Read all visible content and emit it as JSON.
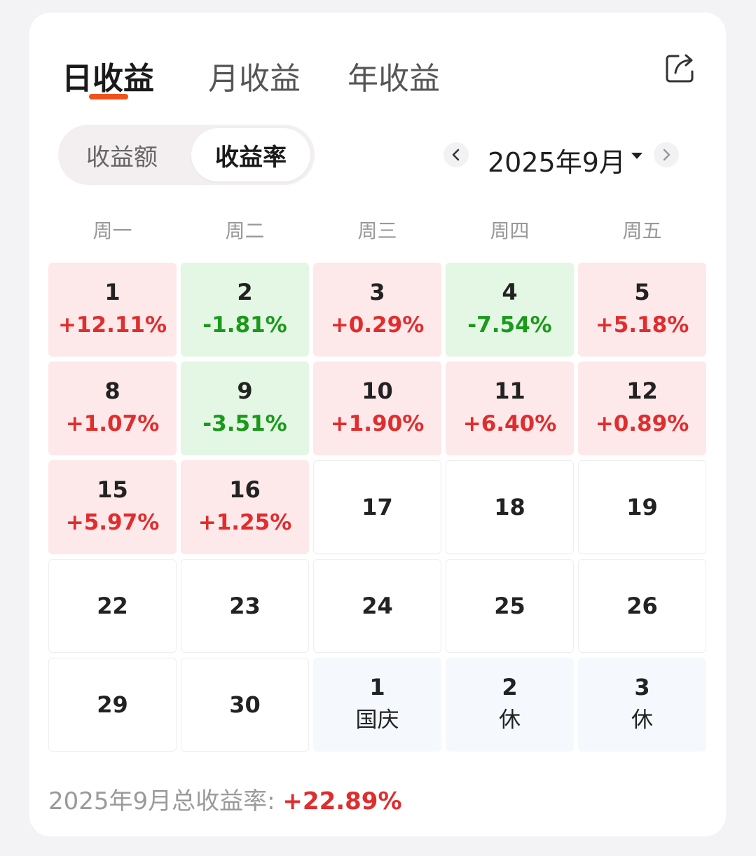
{
  "tabs": [
    {
      "label": "日收益",
      "active": true
    },
    {
      "label": "月收益",
      "active": false
    },
    {
      "label": "年收益",
      "active": false
    }
  ],
  "segment": {
    "options": [
      "收益额",
      "收益率"
    ],
    "selected": "收益率"
  },
  "month_picker": {
    "label": "2025年9月"
  },
  "weekdays": [
    "周一",
    "周二",
    "周三",
    "周四",
    "周五"
  ],
  "calendar": [
    [
      {
        "day": "1",
        "value": "+12.11%",
        "kind": "red"
      },
      {
        "day": "2",
        "value": "-1.81%",
        "kind": "green"
      },
      {
        "day": "3",
        "value": "+0.29%",
        "kind": "red"
      },
      {
        "day": "4",
        "value": "-7.54%",
        "kind": "green"
      },
      {
        "day": "5",
        "value": "+5.18%",
        "kind": "red"
      }
    ],
    [
      {
        "day": "8",
        "value": "+1.07%",
        "kind": "red"
      },
      {
        "day": "9",
        "value": "-3.51%",
        "kind": "green"
      },
      {
        "day": "10",
        "value": "+1.90%",
        "kind": "red"
      },
      {
        "day": "11",
        "value": "+6.40%",
        "kind": "red"
      },
      {
        "day": "12",
        "value": "+0.89%",
        "kind": "red"
      }
    ],
    [
      {
        "day": "15",
        "value": "+5.97%",
        "kind": "red"
      },
      {
        "day": "16",
        "value": "+1.25%",
        "kind": "red"
      },
      {
        "day": "17",
        "value": "",
        "kind": "empty"
      },
      {
        "day": "18",
        "value": "",
        "kind": "empty"
      },
      {
        "day": "19",
        "value": "",
        "kind": "empty"
      }
    ],
    [
      {
        "day": "22",
        "value": "",
        "kind": "empty"
      },
      {
        "day": "23",
        "value": "",
        "kind": "empty"
      },
      {
        "day": "24",
        "value": "",
        "kind": "empty"
      },
      {
        "day": "25",
        "value": "",
        "kind": "empty"
      },
      {
        "day": "26",
        "value": "",
        "kind": "empty"
      }
    ],
    [
      {
        "day": "29",
        "value": "",
        "kind": "empty"
      },
      {
        "day": "30",
        "value": "",
        "kind": "empty"
      },
      {
        "day": "1",
        "value": "国庆",
        "kind": "next"
      },
      {
        "day": "2",
        "value": "休",
        "kind": "next"
      },
      {
        "day": "3",
        "value": "休",
        "kind": "next"
      }
    ]
  ],
  "footer": {
    "label": "2025年9月总收益率: ",
    "total": "+22.89%"
  },
  "colors": {
    "accent": "#f0521c",
    "gain_bg": "#fde8ea",
    "gain_text": "#e02d2d",
    "loss_bg": "#e4f6e4",
    "loss_text": "#1a9a1a"
  },
  "icons": {
    "share": "share-icon",
    "prev": "chevron-left-icon",
    "next": "chevron-right-icon",
    "dropdown": "caret-down-icon"
  }
}
